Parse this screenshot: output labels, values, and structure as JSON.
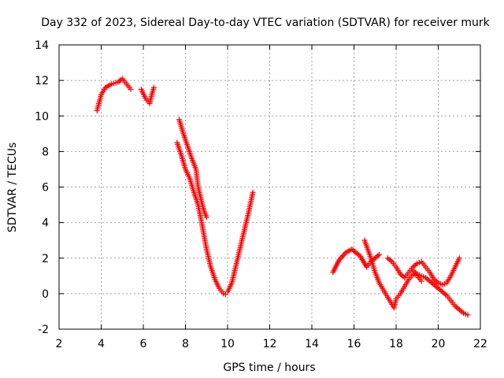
{
  "chart_data": {
    "type": "scatter",
    "title": "Day 332 of 2023, Sidereal Day-to-day VTEC variation (SDTVAR) for receiver murk",
    "xlabel": "GPS time / hours",
    "ylabel": "SDTVAR / TECUs",
    "xlim": [
      2,
      22
    ],
    "ylim": [
      -2,
      14
    ],
    "xticks": [
      2,
      4,
      6,
      8,
      10,
      12,
      14,
      16,
      18,
      20,
      22
    ],
    "yticks": [
      -2,
      0,
      2,
      4,
      6,
      8,
      10,
      12,
      14
    ],
    "grid": true,
    "marker": "+",
    "color": "#ff0000",
    "segments": [
      {
        "x": [
          3.8,
          4.0,
          4.2,
          4.5,
          4.8,
          5.0,
          5.2,
          5.4
        ],
        "y": [
          10.3,
          11.2,
          11.6,
          11.8,
          11.9,
          12.1,
          11.8,
          11.5
        ]
      },
      {
        "x": [
          5.9,
          6.1,
          6.3,
          6.4,
          6.5
        ],
        "y": [
          11.5,
          11.0,
          10.7,
          11.2,
          11.6
        ]
      },
      {
        "x": [
          7.7,
          7.9,
          8.1,
          8.3,
          8.5,
          8.6,
          8.8,
          8.9,
          9.0
        ],
        "y": [
          9.8,
          9.0,
          8.3,
          7.6,
          7.0,
          6.0,
          5.0,
          4.6,
          4.3
        ]
      },
      {
        "x": [
          7.6,
          7.8,
          8.0,
          8.2,
          8.4,
          8.6,
          8.8,
          9.0,
          9.2,
          9.4,
          9.6,
          9.8,
          9.9,
          10.0,
          10.2,
          10.4,
          10.6,
          10.8,
          11.0,
          11.2
        ],
        "y": [
          8.5,
          7.8,
          7.0,
          6.5,
          5.7,
          5.0,
          3.8,
          2.5,
          1.5,
          0.8,
          0.3,
          0.0,
          -0.05,
          0.1,
          0.6,
          1.6,
          2.6,
          3.6,
          4.6,
          5.7
        ]
      },
      {
        "x": [
          15.0,
          15.3,
          15.6,
          15.9,
          16.1,
          16.3,
          16.6,
          16.8,
          17.0,
          17.2
        ],
        "y": [
          1.2,
          1.9,
          2.3,
          2.5,
          2.3,
          2.1,
          1.5,
          1.8,
          2.0,
          2.2
        ]
      },
      {
        "x": [
          16.5,
          16.8,
          17.0,
          17.2,
          17.4,
          17.6,
          17.8,
          17.9,
          18.0,
          18.2,
          18.4,
          18.6,
          18.8,
          19.0,
          19.2
        ],
        "y": [
          3.0,
          2.0,
          1.2,
          0.6,
          0.2,
          -0.2,
          -0.6,
          -0.8,
          -0.3,
          0.0,
          0.4,
          0.8,
          1.1,
          1.0,
          0.7
        ]
      },
      {
        "x": [
          17.6,
          17.8,
          18.0,
          18.2,
          18.4,
          18.6,
          18.8,
          19.0,
          19.2,
          19.4,
          19.6,
          19.8,
          20.0,
          20.2,
          20.4,
          20.6,
          20.8,
          21.0
        ],
        "y": [
          2.0,
          1.8,
          1.5,
          1.1,
          0.9,
          1.2,
          1.5,
          1.7,
          1.8,
          1.5,
          1.2,
          0.8,
          0.6,
          0.5,
          0.6,
          1.0,
          1.5,
          2.0
        ]
      },
      {
        "x": [
          18.8,
          19.0,
          19.2,
          19.4,
          19.6,
          19.8,
          20.0,
          20.2,
          20.4,
          20.6,
          20.8,
          21.0,
          21.2,
          21.4
        ],
        "y": [
          1.3,
          1.1,
          1.0,
          0.9,
          0.7,
          0.5,
          0.3,
          0.1,
          -0.1,
          -0.4,
          -0.7,
          -0.9,
          -1.1,
          -1.2
        ]
      }
    ]
  }
}
